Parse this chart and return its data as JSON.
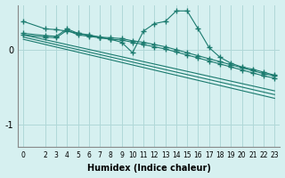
{
  "background_color": "#d6f0f0",
  "line_color": "#1a7a6e",
  "xlabel": "Humidex (Indice chaleur)",
  "x_ticks": [
    0,
    2,
    3,
    4,
    5,
    6,
    7,
    8,
    9,
    10,
    11,
    12,
    13,
    14,
    15,
    16,
    17,
    18,
    19,
    20,
    21,
    22,
    23
  ],
  "ylim": [
    -1.3,
    0.6
  ],
  "yticks": [
    -1,
    0
  ],
  "grid_color": "#b0d8d8",
  "series1_x": [
    0,
    2,
    3,
    4,
    5,
    6,
    7,
    8,
    9,
    10,
    11,
    12,
    13,
    14,
    15,
    16,
    17,
    18,
    19,
    20,
    21,
    22,
    23
  ],
  "series1_y": [
    0.38,
    0.28,
    0.27,
    0.25,
    0.22,
    0.2,
    0.17,
    0.14,
    0.1,
    -0.04,
    0.25,
    0.35,
    0.38,
    0.52,
    0.52,
    0.28,
    0.03,
    -0.1,
    -0.18,
    -0.23,
    -0.26,
    -0.3,
    -0.34
  ],
  "series2_x": [
    0,
    2,
    3,
    4,
    5,
    6,
    7,
    8,
    9,
    10,
    11,
    12,
    13,
    14,
    15,
    16,
    17,
    18,
    19,
    20,
    21,
    22,
    23
  ],
  "series2_y": [
    0.22,
    0.19,
    0.18,
    0.28,
    0.22,
    0.19,
    0.17,
    0.16,
    0.15,
    0.12,
    0.1,
    0.07,
    0.04,
    0.0,
    -0.04,
    -0.08,
    -0.12,
    -0.16,
    -0.2,
    -0.24,
    -0.28,
    -0.32,
    -0.35
  ],
  "series3_x": [
    0,
    2,
    3,
    4,
    5,
    6,
    7,
    8,
    9,
    10,
    11,
    12,
    13,
    14,
    15,
    16,
    17,
    18,
    19,
    20,
    21,
    22,
    23
  ],
  "series3_y": [
    0.2,
    0.17,
    0.16,
    0.26,
    0.2,
    0.18,
    0.16,
    0.14,
    0.13,
    0.1,
    0.07,
    0.04,
    0.01,
    -0.03,
    -0.07,
    -0.11,
    -0.15,
    -0.19,
    -0.23,
    -0.27,
    -0.31,
    -0.35,
    -0.38
  ],
  "series4_x": [
    0,
    23
  ],
  "series4_y": [
    0.2,
    -0.55
  ],
  "series5_x": [
    0,
    23
  ],
  "series5_y": [
    0.17,
    -0.6
  ],
  "series6_x": [
    0,
    23
  ],
  "series6_y": [
    0.14,
    -0.65
  ]
}
